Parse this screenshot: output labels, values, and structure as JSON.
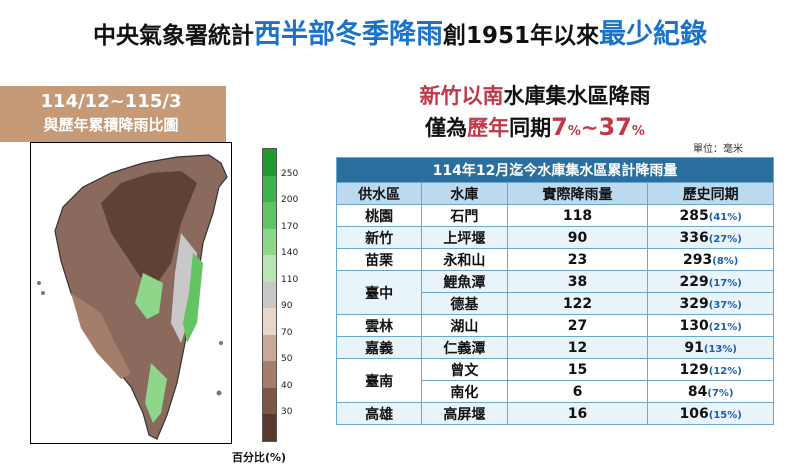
{
  "title": {
    "part1": "中央氣象署統計",
    "part2": "西半部冬季降雨",
    "part3": "創1951年以來",
    "part4": "最少紀錄"
  },
  "map": {
    "header_line1": "114/12~115/3",
    "header_line2": "與歷年累積降雨比圖",
    "colorbar_labels": [
      "250",
      "200",
      "170",
      "140",
      "110",
      "90",
      "70",
      "50",
      "40",
      "30"
    ],
    "colorbar_colors": [
      "#1e9a2e",
      "#3cb44b",
      "#62c463",
      "#8dd68a",
      "#b7e6b2",
      "#c8c8c8",
      "#e8d8cc",
      "#caa996",
      "#a47e6b",
      "#7c5747",
      "#5a3a2e"
    ],
    "unit_label": "百分比(%)"
  },
  "subhead": {
    "line1_red": "新竹以南",
    "line1_black": "水庫集水區降雨",
    "line2_black": "僅為",
    "line2_red1": "歷年",
    "line2_black2": "同期",
    "pct_low": "7",
    "pct_sign1": "%",
    "tilde": "~",
    "pct_high": "37",
    "pct_sign2": "%"
  },
  "unit_note": "單位：毫米",
  "table": {
    "caption": "114年12月迄今水庫集水區累計降雨量",
    "headers": [
      "供水區",
      "水庫",
      "實際降雨量",
      "歷史同期"
    ],
    "rows": [
      {
        "region": "桃園",
        "reservoir": "石門",
        "actual": "118",
        "hist": "285",
        "pct": "(41%)"
      },
      {
        "region": "新竹",
        "reservoir": "上坪堰",
        "actual": "90",
        "hist": "336",
        "pct": "(27%)"
      },
      {
        "region": "苗栗",
        "reservoir": "永和山",
        "actual": "23",
        "hist": "293",
        "pct": "(8%)"
      },
      {
        "region": "臺中",
        "reservoir": "鯉魚潭",
        "actual": "38",
        "hist": "229",
        "pct": "(17%)"
      },
      {
        "region": "",
        "reservoir": "德基",
        "actual": "122",
        "hist": "329",
        "pct": "(37%)"
      },
      {
        "region": "雲林",
        "reservoir": "湖山",
        "actual": "27",
        "hist": "130",
        "pct": "(21%)"
      },
      {
        "region": "嘉義",
        "reservoir": "仁義潭",
        "actual": "12",
        "hist": "91",
        "pct": "(13%)"
      },
      {
        "region": "臺南",
        "reservoir": "曾文",
        "actual": "15",
        "hist": "129",
        "pct": "(12%)"
      },
      {
        "region": "",
        "reservoir": "南化",
        "actual": "6",
        "hist": "84",
        "pct": "(7%)"
      },
      {
        "region": "高雄",
        "reservoir": "高屏堰",
        "actual": "16",
        "hist": "106",
        "pct": "(15%)"
      }
    ]
  }
}
